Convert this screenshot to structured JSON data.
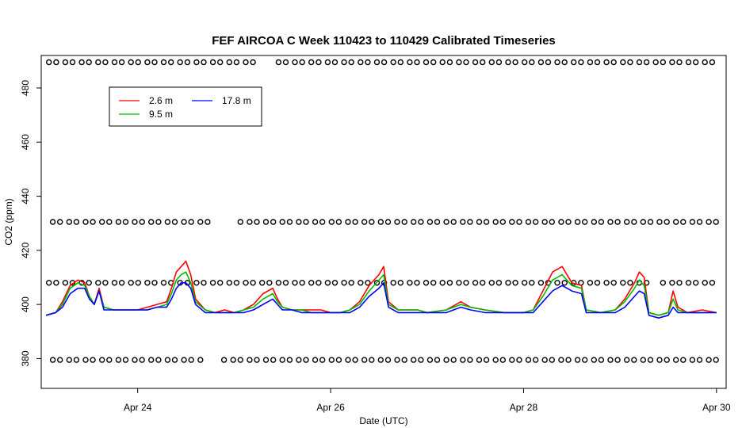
{
  "chart_data": {
    "type": "line",
    "title": "FEF AIRCOA C  Week 110423 to 110429  Calibrated Timeseries",
    "xlabel": "Date (UTC)",
    "ylabel": "CO2 (ppm)",
    "x_unit": "days (April 2011)",
    "xlim": [
      23.0,
      30.1
    ],
    "ylim": [
      369,
      492
    ],
    "grid": false,
    "legend_position": "top-left",
    "x_ticks": [
      {
        "value": 24,
        "label": "Apr 24"
      },
      {
        "value": 26,
        "label": "Apr 26"
      },
      {
        "value": 28,
        "label": "Apr 28"
      },
      {
        "value": 30,
        "label": "Apr 30"
      }
    ],
    "y_ticks": [
      {
        "value": 380,
        "label": "380"
      },
      {
        "value": 400,
        "label": "400"
      },
      {
        "value": 420,
        "label": "420"
      },
      {
        "value": 440,
        "label": "440"
      },
      {
        "value": 460,
        "label": "460"
      },
      {
        "value": 480,
        "label": "480"
      }
    ],
    "series": [
      {
        "name": "2.6 m",
        "color": "#ff0000",
        "points": [
          [
            23.05,
            396
          ],
          [
            23.15,
            397
          ],
          [
            23.22,
            401
          ],
          [
            23.3,
            407
          ],
          [
            23.38,
            409
          ],
          [
            23.45,
            408
          ],
          [
            23.5,
            403
          ],
          [
            23.55,
            400
          ],
          [
            23.6,
            406
          ],
          [
            23.65,
            399
          ],
          [
            23.75,
            398
          ],
          [
            23.9,
            398
          ],
          [
            24.0,
            398
          ],
          [
            24.1,
            399
          ],
          [
            24.2,
            400
          ],
          [
            24.3,
            401
          ],
          [
            24.35,
            406
          ],
          [
            24.4,
            412
          ],
          [
            24.45,
            414
          ],
          [
            24.5,
            416
          ],
          [
            24.55,
            411
          ],
          [
            24.6,
            402
          ],
          [
            24.7,
            398
          ],
          [
            24.8,
            397
          ],
          [
            24.9,
            398
          ],
          [
            25.0,
            397
          ],
          [
            25.1,
            398
          ],
          [
            25.2,
            400
          ],
          [
            25.3,
            404
          ],
          [
            25.4,
            406
          ],
          [
            25.45,
            402
          ],
          [
            25.5,
            399
          ],
          [
            25.6,
            398
          ],
          [
            25.7,
            398
          ],
          [
            25.8,
            398
          ],
          [
            25.9,
            398
          ],
          [
            26.0,
            397
          ],
          [
            26.1,
            397
          ],
          [
            26.2,
            398
          ],
          [
            26.3,
            401
          ],
          [
            26.4,
            407
          ],
          [
            26.5,
            411
          ],
          [
            26.55,
            414
          ],
          [
            26.6,
            401
          ],
          [
            26.7,
            398
          ],
          [
            26.9,
            398
          ],
          [
            27.0,
            397
          ],
          [
            27.2,
            398
          ],
          [
            27.35,
            401
          ],
          [
            27.45,
            399
          ],
          [
            27.6,
            398
          ],
          [
            27.8,
            397
          ],
          [
            28.0,
            397
          ],
          [
            28.1,
            398
          ],
          [
            28.2,
            405
          ],
          [
            28.3,
            412
          ],
          [
            28.4,
            414
          ],
          [
            28.5,
            408
          ],
          [
            28.6,
            407
          ],
          [
            28.65,
            398
          ],
          [
            28.8,
            397
          ],
          [
            28.95,
            398
          ],
          [
            29.05,
            402
          ],
          [
            29.15,
            408
          ],
          [
            29.2,
            412
          ],
          [
            29.25,
            410
          ],
          [
            29.3,
            397
          ],
          [
            29.4,
            396
          ],
          [
            29.5,
            397
          ],
          [
            29.55,
            405
          ],
          [
            29.6,
            399
          ],
          [
            29.7,
            397
          ],
          [
            29.85,
            398
          ],
          [
            30.0,
            397
          ]
        ]
      },
      {
        "name": "9.5 m",
        "color": "#00bb00",
        "points": [
          [
            23.05,
            396
          ],
          [
            23.15,
            397
          ],
          [
            23.22,
            400
          ],
          [
            23.3,
            406
          ],
          [
            23.38,
            408
          ],
          [
            23.45,
            407
          ],
          [
            23.5,
            403
          ],
          [
            23.55,
            400
          ],
          [
            23.6,
            405
          ],
          [
            23.65,
            399
          ],
          [
            23.75,
            398
          ],
          [
            23.9,
            398
          ],
          [
            24.0,
            398
          ],
          [
            24.1,
            398
          ],
          [
            24.2,
            399
          ],
          [
            24.3,
            400
          ],
          [
            24.35,
            404
          ],
          [
            24.4,
            409
          ],
          [
            24.45,
            411
          ],
          [
            24.5,
            412
          ],
          [
            24.55,
            408
          ],
          [
            24.6,
            401
          ],
          [
            24.7,
            398
          ],
          [
            24.8,
            397
          ],
          [
            24.9,
            397
          ],
          [
            25.0,
            397
          ],
          [
            25.1,
            398
          ],
          [
            25.2,
            399
          ],
          [
            25.3,
            402
          ],
          [
            25.4,
            404
          ],
          [
            25.45,
            401
          ],
          [
            25.5,
            399
          ],
          [
            25.6,
            398
          ],
          [
            25.7,
            398
          ],
          [
            25.8,
            397
          ],
          [
            25.9,
            397
          ],
          [
            26.0,
            397
          ],
          [
            26.1,
            397
          ],
          [
            26.2,
            398
          ],
          [
            26.3,
            400
          ],
          [
            26.4,
            405
          ],
          [
            26.5,
            409
          ],
          [
            26.55,
            411
          ],
          [
            26.6,
            400
          ],
          [
            26.7,
            398
          ],
          [
            26.9,
            398
          ],
          [
            27.0,
            397
          ],
          [
            27.2,
            398
          ],
          [
            27.35,
            400
          ],
          [
            27.45,
            399
          ],
          [
            27.6,
            398
          ],
          [
            27.8,
            397
          ],
          [
            28.0,
            397
          ],
          [
            28.1,
            398
          ],
          [
            28.2,
            403
          ],
          [
            28.3,
            409
          ],
          [
            28.4,
            411
          ],
          [
            28.5,
            407
          ],
          [
            28.6,
            406
          ],
          [
            28.65,
            398
          ],
          [
            28.8,
            397
          ],
          [
            28.95,
            398
          ],
          [
            29.05,
            401
          ],
          [
            29.15,
            406
          ],
          [
            29.2,
            409
          ],
          [
            29.25,
            407
          ],
          [
            29.3,
            397
          ],
          [
            29.4,
            396
          ],
          [
            29.5,
            397
          ],
          [
            29.55,
            402
          ],
          [
            29.6,
            398
          ],
          [
            29.7,
            397
          ],
          [
            29.85,
            397
          ],
          [
            30.0,
            397
          ]
        ]
      },
      {
        "name": "17.8 m",
        "color": "#0000ff",
        "points": [
          [
            23.05,
            396
          ],
          [
            23.15,
            397
          ],
          [
            23.22,
            399
          ],
          [
            23.3,
            404
          ],
          [
            23.38,
            406
          ],
          [
            23.45,
            406
          ],
          [
            23.5,
            402
          ],
          [
            23.55,
            400
          ],
          [
            23.6,
            405
          ],
          [
            23.65,
            398
          ],
          [
            23.75,
            398
          ],
          [
            23.9,
            398
          ],
          [
            24.0,
            398
          ],
          [
            24.1,
            398
          ],
          [
            24.2,
            399
          ],
          [
            24.3,
            399
          ],
          [
            24.35,
            402
          ],
          [
            24.4,
            406
          ],
          [
            24.45,
            408
          ],
          [
            24.5,
            408
          ],
          [
            24.55,
            406
          ],
          [
            24.6,
            400
          ],
          [
            24.7,
            397
          ],
          [
            24.8,
            397
          ],
          [
            24.9,
            397
          ],
          [
            25.0,
            397
          ],
          [
            25.1,
            397
          ],
          [
            25.2,
            398
          ],
          [
            25.3,
            400
          ],
          [
            25.4,
            402
          ],
          [
            25.45,
            400
          ],
          [
            25.5,
            398
          ],
          [
            25.6,
            398
          ],
          [
            25.7,
            397
          ],
          [
            25.8,
            397
          ],
          [
            25.9,
            397
          ],
          [
            26.0,
            397
          ],
          [
            26.1,
            397
          ],
          [
            26.2,
            397
          ],
          [
            26.3,
            399
          ],
          [
            26.4,
            403
          ],
          [
            26.5,
            406
          ],
          [
            26.55,
            408
          ],
          [
            26.6,
            399
          ],
          [
            26.7,
            397
          ],
          [
            26.9,
            397
          ],
          [
            27.0,
            397
          ],
          [
            27.2,
            397
          ],
          [
            27.35,
            399
          ],
          [
            27.45,
            398
          ],
          [
            27.6,
            397
          ],
          [
            27.8,
            397
          ],
          [
            28.0,
            397
          ],
          [
            28.1,
            397
          ],
          [
            28.2,
            401
          ],
          [
            28.3,
            405
          ],
          [
            28.4,
            407
          ],
          [
            28.5,
            405
          ],
          [
            28.6,
            404
          ],
          [
            28.65,
            397
          ],
          [
            28.8,
            397
          ],
          [
            28.95,
            397
          ],
          [
            29.05,
            399
          ],
          [
            29.15,
            403
          ],
          [
            29.2,
            405
          ],
          [
            29.25,
            404
          ],
          [
            29.3,
            396
          ],
          [
            29.4,
            395
          ],
          [
            29.5,
            396
          ],
          [
            29.55,
            399
          ],
          [
            29.6,
            397
          ],
          [
            29.7,
            397
          ],
          [
            29.85,
            397
          ],
          [
            30.0,
            397
          ]
        ]
      }
    ],
    "reference_series": [
      {
        "color": "#000000",
        "marker": "open-circle",
        "y": 489.5
      },
      {
        "color": "#000000",
        "marker": "open-circle",
        "y": 430.5
      },
      {
        "color": "#000000",
        "marker": "open-circle",
        "y": 408
      },
      {
        "color": "#000000",
        "marker": "open-circle",
        "y": 379.5
      }
    ]
  }
}
